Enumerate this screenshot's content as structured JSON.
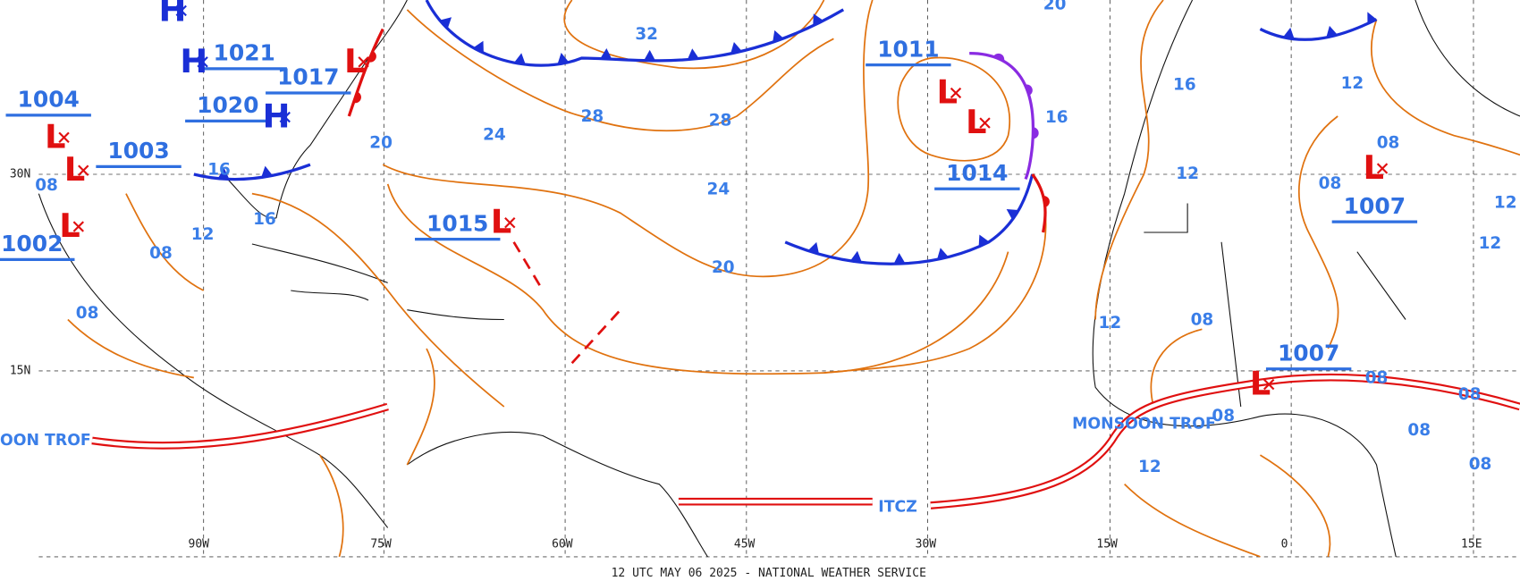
{
  "map": {
    "footer": "12 UTC MAY 06 2025 - NATIONAL WEATHER SERVICE",
    "latitude_labels": [
      "30N",
      "15N"
    ],
    "longitude_labels": [
      "90W",
      "75W",
      "60W",
      "45W",
      "30W",
      "15W",
      "0",
      "15E"
    ],
    "pressure_values": [
      "1011",
      "1014",
      "1015",
      "1007",
      "1007",
      "1003",
      "1004",
      "1002",
      "1020",
      "1021",
      "1017"
    ],
    "pressure_symbols": [
      "L",
      "L",
      "L",
      "L",
      "L",
      "L",
      "L",
      "L",
      "L",
      "H",
      "H",
      "H"
    ],
    "isobar_labels": [
      "32",
      "28",
      "28",
      "24",
      "24",
      "20",
      "20",
      "20",
      "16",
      "16",
      "16",
      "12",
      "08",
      "08",
      "08",
      "16",
      "12",
      "12",
      "08",
      "12",
      "08",
      "08",
      "12",
      "12",
      "08",
      "08",
      "08",
      "08",
      "08",
      "12"
    ],
    "feature_labels": [
      "MONSOON TROF",
      "OON TROF",
      "ITCZ"
    ]
  }
}
